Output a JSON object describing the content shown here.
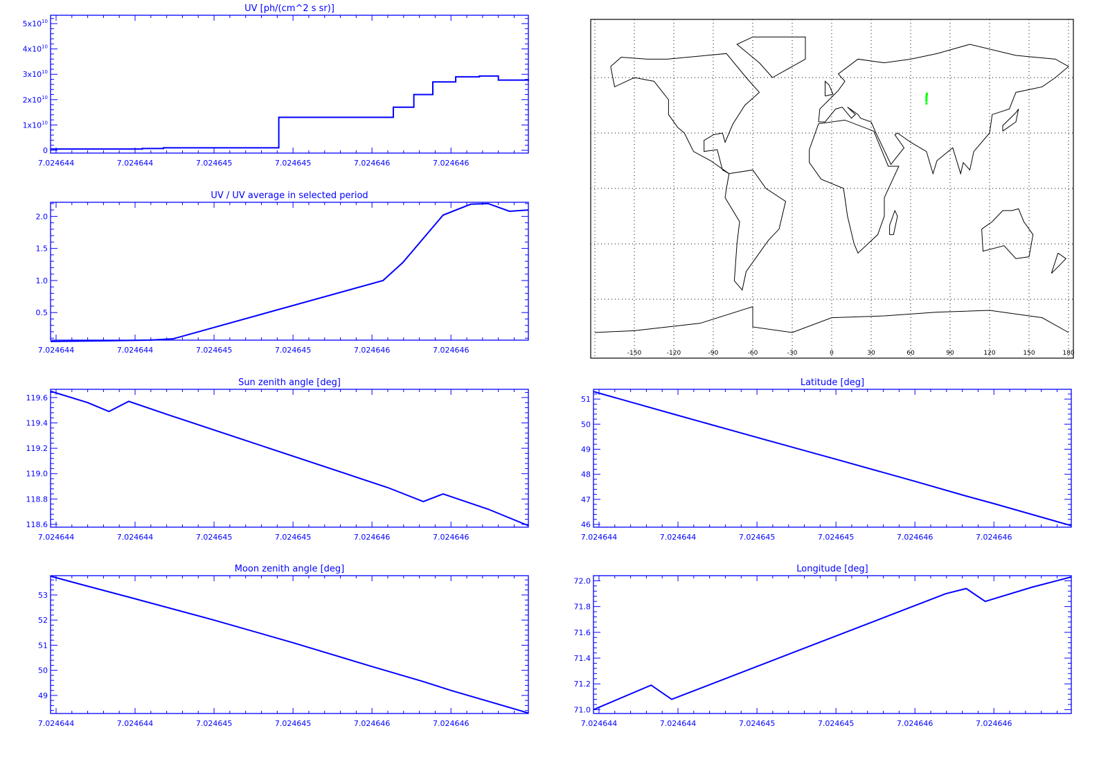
{
  "colors": {
    "axis": "#0000ff",
    "line": "#0000ff",
    "map_outline": "#000000",
    "marker": "#00ff00",
    "background": "#ffffff"
  },
  "chart_data": [
    {
      "id": "uv",
      "type": "line",
      "step": true,
      "title": "UV [ph/(cm^2 s sr)]",
      "xlabel": "",
      "ylabel": "",
      "x_tick_labels": [
        "7.024644",
        "7.024644",
        "7.024645",
        "7.024645",
        "7.024646",
        "7.024646"
      ],
      "x_ticks": [
        0,
        1,
        2,
        3,
        4,
        5
      ],
      "xlim": [
        -0.07,
        5.98
      ],
      "y_unit": "1e10",
      "y_ticks": [
        0,
        1,
        2,
        3,
        4,
        5
      ],
      "y_tick_labels": [
        {
          "base": "0",
          "exp": ""
        },
        {
          "base": "1x10",
          "exp": "10"
        },
        {
          "base": "2x10",
          "exp": "10"
        },
        {
          "base": "3x10",
          "exp": "10"
        },
        {
          "base": "4x10",
          "exp": "10"
        },
        {
          "base": "5x10",
          "exp": "10"
        }
      ],
      "ylim": [
        -0.11,
        5.33
      ],
      "x": [
        -0.07,
        1.09,
        1.36,
        2.82,
        4.27,
        4.53,
        4.77,
        5.06,
        5.36,
        5.6,
        5.98
      ],
      "y": [
        0.05,
        0.07,
        0.1,
        1.3,
        1.7,
        2.2,
        2.7,
        2.9,
        2.93,
        2.77,
        2.8
      ]
    },
    {
      "id": "uv-ratio",
      "type": "line",
      "title": "UV / UV average in selected period",
      "x_tick_labels": [
        "7.024644",
        "7.024644",
        "7.024645",
        "7.024645",
        "7.024646",
        "7.024646"
      ],
      "x_ticks": [
        0,
        1,
        2,
        3,
        4,
        5
      ],
      "xlim": [
        -0.07,
        5.98
      ],
      "y_ticks": [
        0.5,
        1.0,
        1.5,
        2.0
      ],
      "y_tick_labels": [
        {
          "base": "0.5",
          "exp": ""
        },
        {
          "base": "1.0",
          "exp": ""
        },
        {
          "base": "1.5",
          "exp": ""
        },
        {
          "base": "2.0",
          "exp": ""
        }
      ],
      "ylim": [
        0.07,
        2.22
      ],
      "x": [
        -0.07,
        0.69,
        1.18,
        1.48,
        4.14,
        4.39,
        4.9,
        5.25,
        5.47,
        5.74,
        5.98
      ],
      "y": [
        0.05,
        0.06,
        0.07,
        0.09,
        1.0,
        1.28,
        2.02,
        2.19,
        2.2,
        2.08,
        2.1
      ]
    },
    {
      "id": "sun-zenith",
      "type": "line",
      "title": "Sun zenith angle [deg]",
      "x_tick_labels": [
        "7.024644",
        "7.024644",
        "7.024645",
        "7.024645",
        "7.024646",
        "7.024646"
      ],
      "x_ticks": [
        0,
        1,
        2,
        3,
        4,
        5
      ],
      "xlim": [
        -0.07,
        5.98
      ],
      "y_ticks": [
        118.6,
        118.8,
        119.0,
        119.2,
        119.4,
        119.6
      ],
      "y_tick_labels": [
        {
          "base": "118.6",
          "exp": ""
        },
        {
          "base": "118.8",
          "exp": ""
        },
        {
          "base": "119.0",
          "exp": ""
        },
        {
          "base": "119.2",
          "exp": ""
        },
        {
          "base": "119.4",
          "exp": ""
        },
        {
          "base": "119.6",
          "exp": ""
        }
      ],
      "ylim": [
        118.578,
        119.665
      ],
      "x": [
        -0.07,
        0.4,
        0.67,
        0.92,
        1.44,
        4.2,
        4.65,
        4.9,
        5.47,
        5.98
      ],
      "y": [
        119.65,
        119.56,
        119.49,
        119.57,
        119.46,
        118.89,
        118.78,
        118.84,
        118.72,
        118.59
      ]
    },
    {
      "id": "latitude",
      "type": "line",
      "title": "Latitude [deg]",
      "x_tick_labels": [
        "7.024644",
        "7.024644",
        "7.024645",
        "7.024645",
        "7.024646",
        "7.024646"
      ],
      "x_ticks": [
        0,
        1,
        2,
        3,
        4,
        5
      ],
      "xlim": [
        -0.07,
        5.98
      ],
      "y_ticks": [
        46,
        47,
        48,
        49,
        50,
        51
      ],
      "y_tick_labels": [
        {
          "base": "46",
          "exp": ""
        },
        {
          "base": "47",
          "exp": ""
        },
        {
          "base": "48",
          "exp": ""
        },
        {
          "base": "49",
          "exp": ""
        },
        {
          "base": "50",
          "exp": ""
        },
        {
          "base": "51",
          "exp": ""
        }
      ],
      "ylim": [
        45.89,
        51.39
      ],
      "x": [
        -0.07,
        1.0,
        2.0,
        3.0,
        4.0,
        4.65,
        5.0,
        5.98
      ],
      "y": [
        51.3,
        50.35,
        49.47,
        48.6,
        47.72,
        47.13,
        46.83,
        45.95
      ]
    },
    {
      "id": "moon-zenith",
      "type": "line",
      "title": "Moon zenith angle [deg]",
      "x_tick_labels": [
        "7.024644",
        "7.024644",
        "7.024645",
        "7.024645",
        "7.024646",
        "7.024646"
      ],
      "x_ticks": [
        0,
        1,
        2,
        3,
        4,
        5
      ],
      "xlim": [
        -0.07,
        5.98
      ],
      "y_ticks": [
        49,
        50,
        51,
        52,
        53
      ],
      "y_tick_labels": [
        {
          "base": "49",
          "exp": ""
        },
        {
          "base": "50",
          "exp": ""
        },
        {
          "base": "51",
          "exp": ""
        },
        {
          "base": "52",
          "exp": ""
        },
        {
          "base": "53",
          "exp": ""
        }
      ],
      "ylim": [
        48.28,
        53.77
      ],
      "x": [
        -0.07,
        0.4,
        1.0,
        2.0,
        3.0,
        4.0,
        4.65,
        5.0,
        5.98
      ],
      "y": [
        53.75,
        53.35,
        52.85,
        52.0,
        51.1,
        50.15,
        49.55,
        49.2,
        48.3
      ]
    },
    {
      "id": "longitude",
      "type": "line",
      "title": "Longitude [deg]",
      "x_tick_labels": [
        "7.024644",
        "7.024644",
        "7.024645",
        "7.024645",
        "7.024646",
        "7.024646"
      ],
      "x_ticks": [
        0,
        1,
        2,
        3,
        4,
        5
      ],
      "xlim": [
        -0.07,
        5.98
      ],
      "y_ticks": [
        71.0,
        71.2,
        71.4,
        71.6,
        71.8,
        72.0
      ],
      "y_tick_labels": [
        {
          "base": "71.0",
          "exp": ""
        },
        {
          "base": "71.2",
          "exp": ""
        },
        {
          "base": "71.4",
          "exp": ""
        },
        {
          "base": "71.6",
          "exp": ""
        },
        {
          "base": "71.8",
          "exp": ""
        },
        {
          "base": "72.0",
          "exp": ""
        }
      ],
      "ylim": [
        70.97,
        72.04
      ],
      "x": [
        -0.07,
        0.66,
        0.92,
        4.39,
        4.65,
        4.89,
        5.48,
        5.98
      ],
      "y": [
        71.0,
        71.19,
        71.08,
        71.9,
        71.94,
        71.84,
        71.95,
        72.03
      ]
    }
  ],
  "map": {
    "type": "map",
    "lon_tick_labels": [
      "-150",
      "-120",
      "-90",
      "-60",
      "-30",
      "0",
      "30",
      "60",
      "90",
      "120",
      "150",
      "180"
    ],
    "lon_ticks": [
      -150,
      -120,
      -90,
      -60,
      -30,
      0,
      30,
      60,
      90,
      120,
      150,
      180
    ],
    "lat_grid": [
      60,
      30,
      0,
      -30,
      -60
    ],
    "track": [
      [
        72.3,
        51.3
      ],
      [
        72.0,
        49.0
      ],
      [
        72.0,
        46.0
      ]
    ]
  }
}
